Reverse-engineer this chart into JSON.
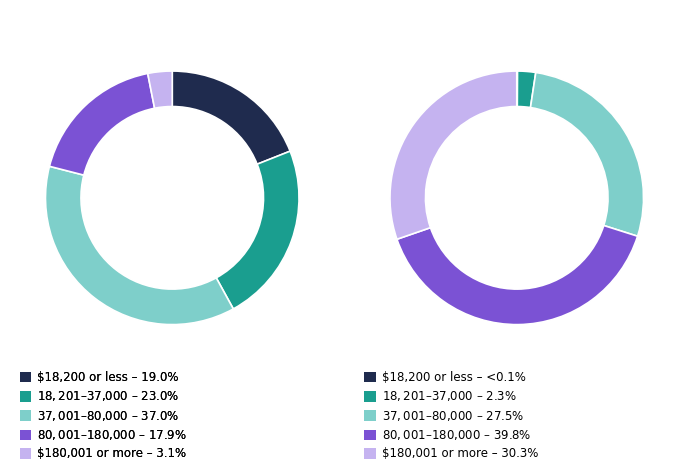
{
  "left_chart": {
    "values": [
      19.0,
      23.0,
      37.0,
      17.9,
      3.1
    ],
    "colors": [
      "#1f2b4e",
      "#1a9e8f",
      "#7ecfca",
      "#7b52d4",
      "#c5b3f0"
    ],
    "labels": [
      "$18,200 or less – 19.0%",
      "$18,201–$37,000 – 23.0%",
      "$37,001–$80,000 – 37.0%",
      "$80,001–$180,000 – 17.9%",
      "$180,001 or more – 3.1%"
    ]
  },
  "right_chart": {
    "values": [
      0.1,
      2.3,
      27.5,
      39.8,
      30.3
    ],
    "colors": [
      "#1f2b4e",
      "#1a9e8f",
      "#7ecfca",
      "#7b52d4",
      "#c5b3f0"
    ],
    "labels": [
      "$18,200 or less – <0.1%",
      "$18,201–$37,000 – 2.3%",
      "$37,001–$80,000 – 27.5%",
      "$80,001–$180,000 – 39.8%",
      "$180,001 or more – 30.3%"
    ]
  },
  "background_color": "#ffffff",
  "legend_fontsize": 8.5,
  "donut_width": 0.28,
  "startangle": 90
}
